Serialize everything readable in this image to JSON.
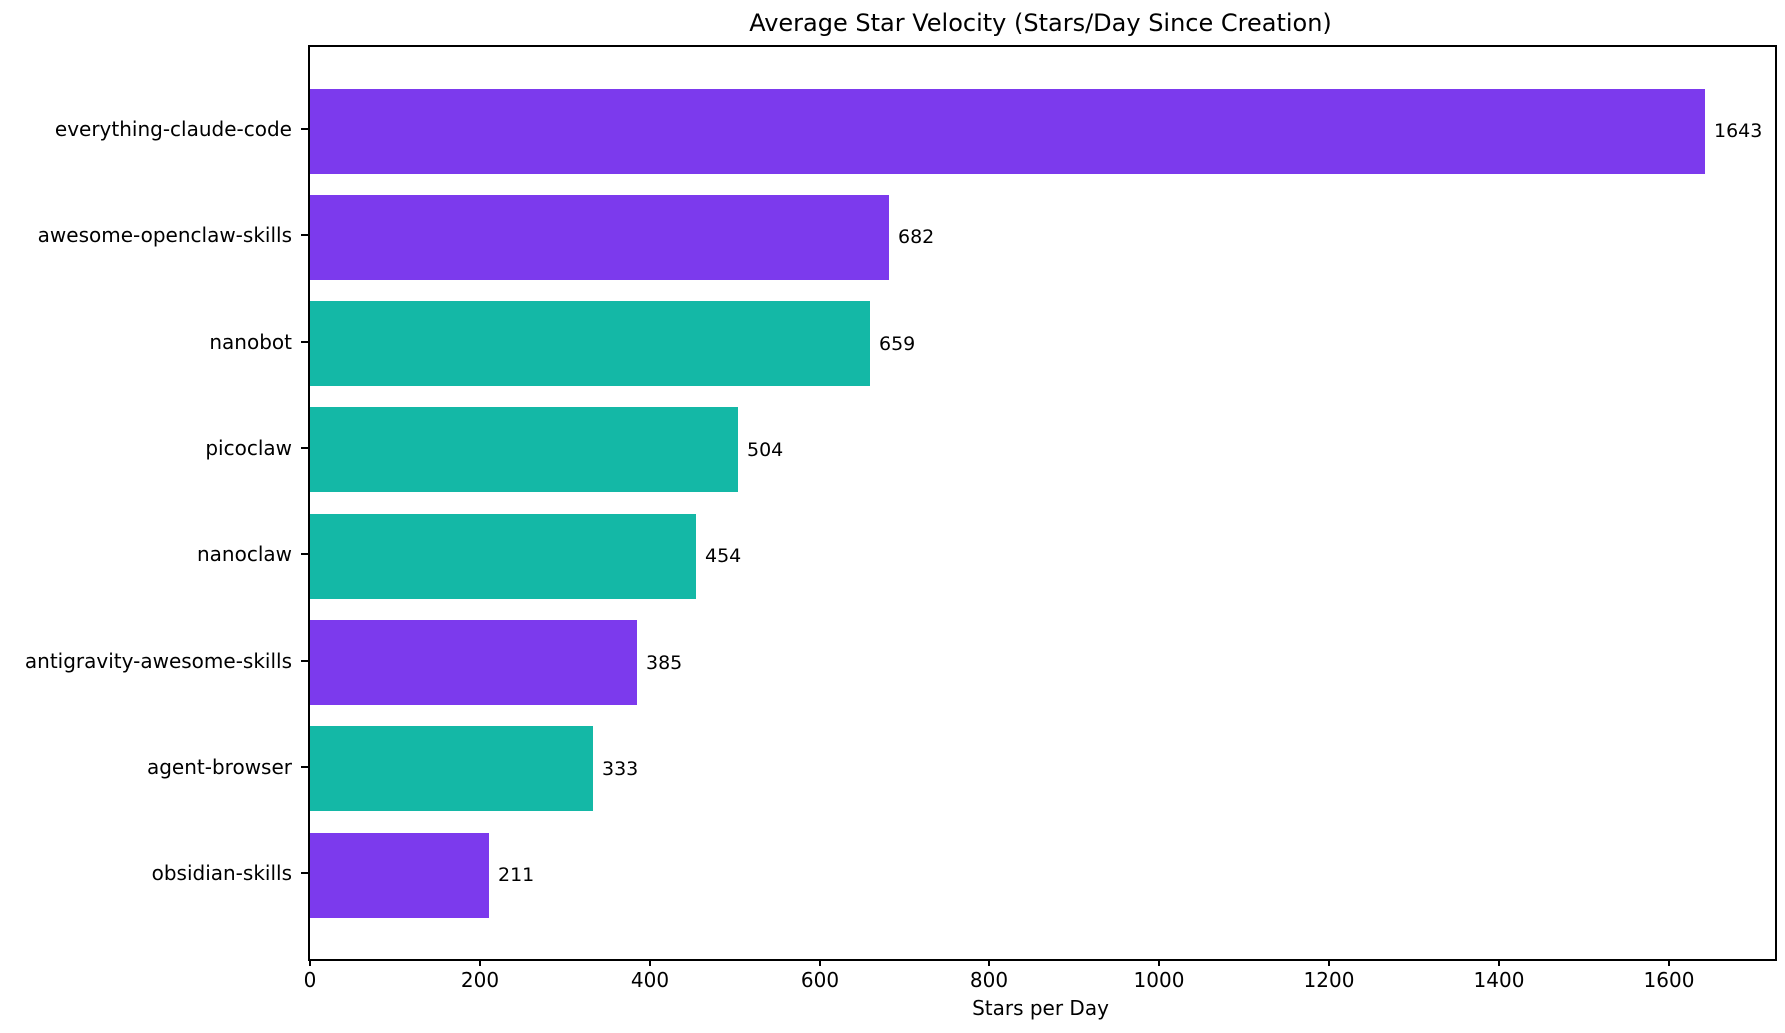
{
  "chart_data": {
    "type": "bar",
    "orientation": "horizontal",
    "title": "Average Star Velocity (Stars/Day Since Creation)",
    "xlabel": "Stars per Day",
    "ylabel": "",
    "categories": [
      "everything-claude-code",
      "awesome-openclaw-skills",
      "nanobot",
      "picoclaw",
      "nanoclaw",
      "antigravity-awesome-skills",
      "agent-browser",
      "obsidian-skills"
    ],
    "values": [
      1643,
      682,
      659,
      504,
      454,
      385,
      333,
      211
    ],
    "value_labels": [
      "1643",
      "682",
      "659",
      "504",
      "454",
      "385",
      "333",
      "211"
    ],
    "bar_colors": [
      "#7C3AED",
      "#7C3AED",
      "#14B8A6",
      "#14B8A6",
      "#14B8A6",
      "#7C3AED",
      "#14B8A6",
      "#7C3AED"
    ],
    "colors": {
      "purple": "#7C3AED",
      "teal": "#14B8A6",
      "spine": "#000000",
      "background": "#ffffff"
    },
    "x_ticks": [
      0,
      200,
      400,
      600,
      800,
      1000,
      1200,
      1400,
      1600
    ],
    "x_tick_labels": [
      "0",
      "200",
      "400",
      "600",
      "800",
      "1000",
      "1200",
      "1400",
      "1600"
    ],
    "xlim": [
      0,
      1725
    ],
    "grid": false,
    "legend_position": "none"
  }
}
